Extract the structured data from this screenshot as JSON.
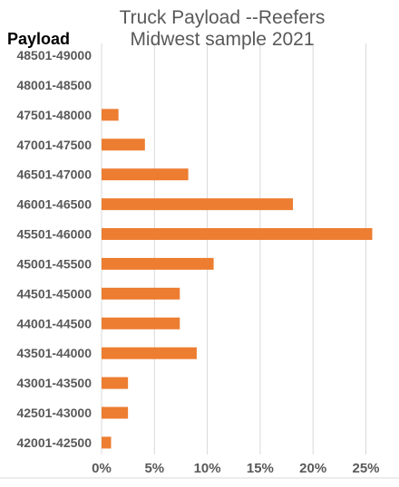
{
  "chart_data": {
    "type": "bar",
    "orientation": "horizontal",
    "title": "Truck Payload --Reefers",
    "subtitle": "Midwest sample 2021",
    "ylabel": "Payload",
    "xlabel": "",
    "categories": [
      "48501-49000",
      "48001-48500",
      "47501-48000",
      "47001-47500",
      "46501-47000",
      "46001-46500",
      "45501-46000",
      "45001-45500",
      "44501-45000",
      "44001-44500",
      "43501-44000",
      "43001-43500",
      "42501-43000",
      "42001-42500"
    ],
    "values": [
      0,
      0,
      1.6,
      4.1,
      8.2,
      18.1,
      25.6,
      10.6,
      7.4,
      7.4,
      9.0,
      2.5,
      2.5,
      0.9
    ],
    "value_format": "percent",
    "xlim": [
      0,
      25
    ],
    "xticks": [
      0,
      5,
      10,
      15,
      20,
      25
    ],
    "xtick_labels": [
      "0%",
      "5%",
      "10%",
      "15%",
      "20%",
      "25%"
    ],
    "grid": true,
    "legend": "none",
    "bar_color": "#ED7D31",
    "grid_color": "#D9D9D9",
    "title_color": "#595959",
    "label_color": "#595959"
  }
}
